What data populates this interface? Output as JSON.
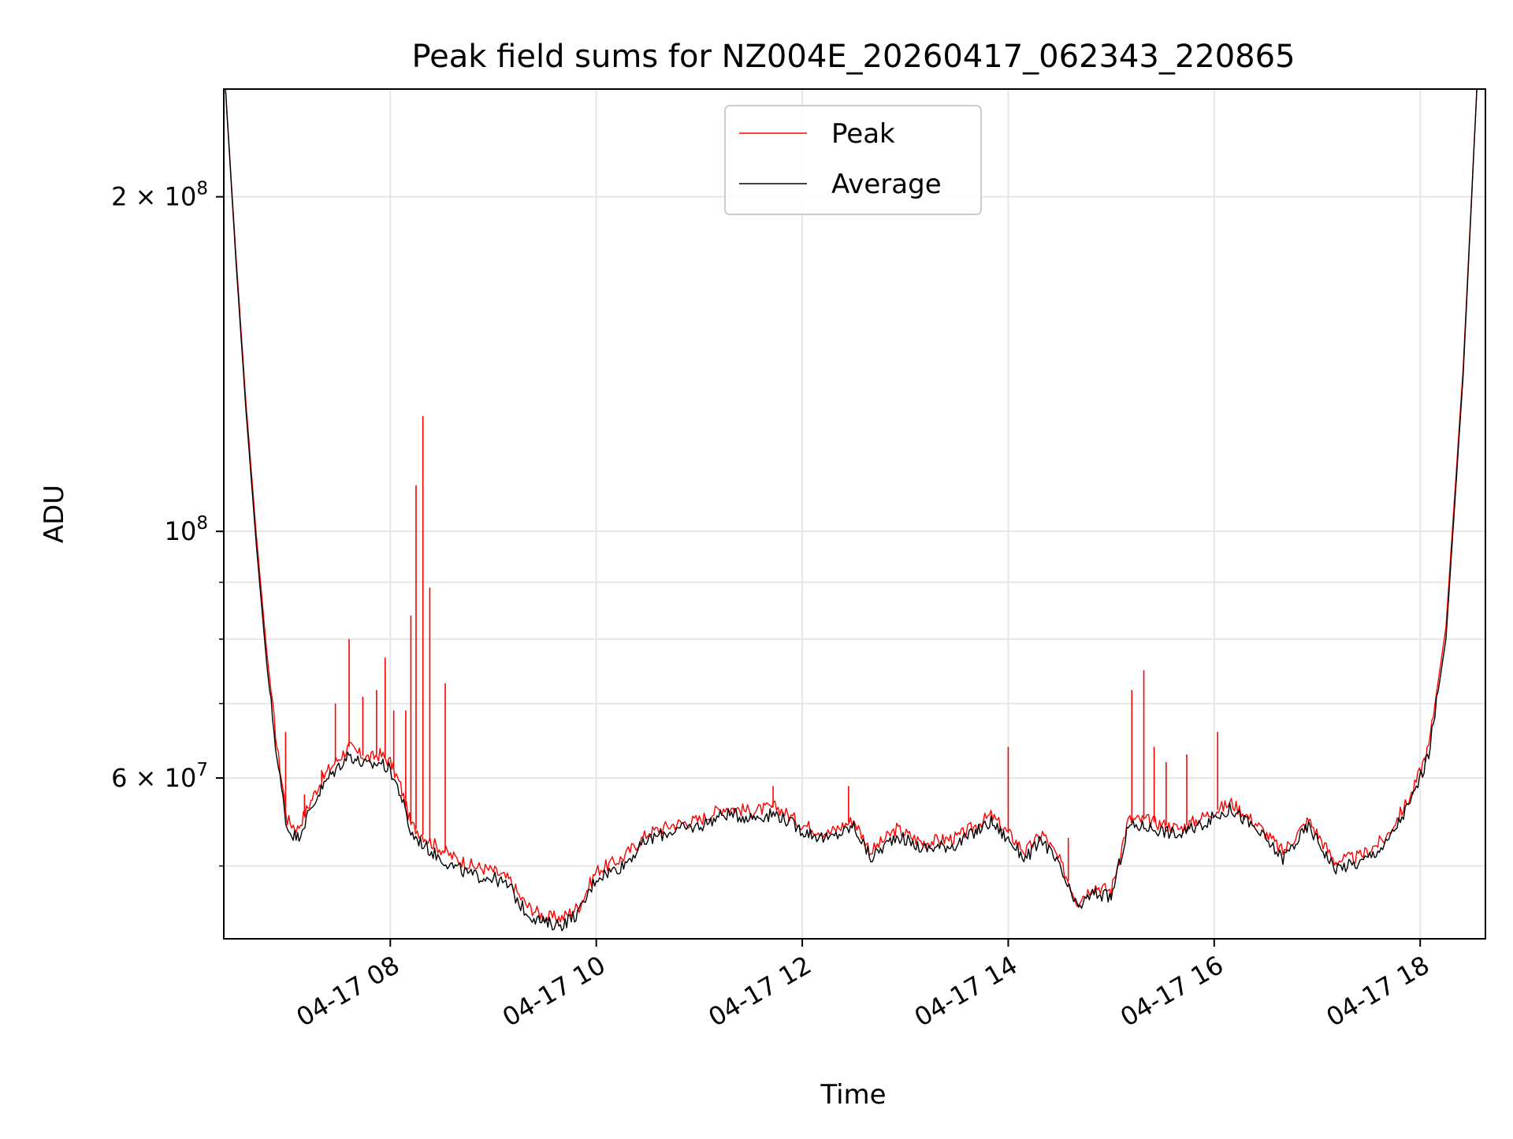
{
  "chart_data": {
    "type": "line",
    "title": "Peak field sums for NZ004E_20260417_062343_220865",
    "xlabel": "Time",
    "ylabel": "ADU",
    "x_type": "datetime",
    "x_range": [
      "2026-04-17T06:23",
      "2026-04-17T18:38"
    ],
    "xticks": [
      {
        "x": "2026-04-17T08:00",
        "label": "04-17 08"
      },
      {
        "x": "2026-04-17T10:00",
        "label": "04-17 10"
      },
      {
        "x": "2026-04-17T12:00",
        "label": "04-17 12"
      },
      {
        "x": "2026-04-17T14:00",
        "label": "04-17 14"
      },
      {
        "x": "2026-04-17T16:00",
        "label": "04-17 16"
      },
      {
        "x": "2026-04-17T18:00",
        "label": "04-17 18"
      }
    ],
    "yscale": "log",
    "ylim": [
      43000000,
      250000000
    ],
    "yticks_major": [
      {
        "value": 60000000,
        "base": "6",
        "exp": "7"
      },
      {
        "value": 100000000,
        "base": "",
        "exp": "8"
      },
      {
        "value": 200000000,
        "base": "2",
        "exp": "8"
      }
    ],
    "yticks_minor": [
      50000000,
      70000000,
      80000000,
      90000000
    ],
    "grid": true,
    "legend_position": "top-center",
    "series": [
      {
        "name": "Peak",
        "color": "#ff0000",
        "points": [
          [
            "2026-04-17T06:24",
            250000000
          ],
          [
            "2026-04-17T06:30",
            178000000
          ],
          [
            "2026-04-17T06:36",
            130000000
          ],
          [
            "2026-04-17T06:42",
            99000000
          ],
          [
            "2026-04-17T06:48",
            78000000
          ],
          [
            "2026-04-17T06:54",
            64000000
          ],
          [
            "2026-04-17T07:00",
            55000000
          ],
          [
            "2026-04-17T07:06",
            54000000
          ],
          [
            "2026-04-17T07:12",
            56500000
          ],
          [
            "2026-04-17T07:18",
            59000000
          ],
          [
            "2026-04-17T07:24",
            61000000
          ],
          [
            "2026-04-17T07:30",
            62500000
          ],
          [
            "2026-04-17T07:36",
            64000000
          ],
          [
            "2026-04-17T07:42",
            63000000
          ],
          [
            "2026-04-17T07:48",
            62500000
          ],
          [
            "2026-04-17T07:54",
            63000000
          ],
          [
            "2026-04-17T08:00",
            62000000
          ],
          [
            "2026-04-17T08:06",
            59000000
          ],
          [
            "2026-04-17T08:12",
            54500000
          ],
          [
            "2026-04-17T08:24",
            52500000
          ],
          [
            "2026-04-17T08:36",
            51000000
          ],
          [
            "2026-04-17T08:48",
            50000000
          ],
          [
            "2026-04-17T09:00",
            49500000
          ],
          [
            "2026-04-17T09:10",
            48500000
          ],
          [
            "2026-04-17T09:15",
            47000000
          ],
          [
            "2026-04-17T09:20",
            46000000
          ],
          [
            "2026-04-17T09:30",
            45000000
          ],
          [
            "2026-04-17T09:40",
            44900000
          ],
          [
            "2026-04-17T09:50",
            46000000
          ],
          [
            "2026-04-17T10:00",
            49500000
          ],
          [
            "2026-04-17T10:15",
            50800000
          ],
          [
            "2026-04-17T10:30",
            53500000
          ],
          [
            "2026-04-17T10:45",
            54500000
          ],
          [
            "2026-04-17T11:00",
            55000000
          ],
          [
            "2026-04-17T11:15",
            56500000
          ],
          [
            "2026-04-17T11:30",
            56000000
          ],
          [
            "2026-04-17T11:45",
            56500000
          ],
          [
            "2026-04-17T12:00",
            54500000
          ],
          [
            "2026-04-17T12:15",
            53500000
          ],
          [
            "2026-04-17T12:30",
            55000000
          ],
          [
            "2026-04-17T12:40",
            51500000
          ],
          [
            "2026-04-17T12:55",
            54000000
          ],
          [
            "2026-04-17T13:10",
            52500000
          ],
          [
            "2026-04-17T13:30",
            53000000
          ],
          [
            "2026-04-17T13:50",
            55500000
          ],
          [
            "2026-04-17T14:00",
            53500000
          ],
          [
            "2026-04-17T14:10",
            51500000
          ],
          [
            "2026-04-17T14:20",
            53500000
          ],
          [
            "2026-04-17T14:30",
            50500000
          ],
          [
            "2026-04-17T14:40",
            46500000
          ],
          [
            "2026-04-17T14:50",
            48000000
          ],
          [
            "2026-04-17T15:00",
            47500000
          ],
          [
            "2026-04-17T15:10",
            55000000
          ],
          [
            "2026-04-17T15:20",
            55000000
          ],
          [
            "2026-04-17T15:40",
            54000000
          ],
          [
            "2026-04-17T15:55",
            55500000
          ],
          [
            "2026-04-17T16:10",
            57000000
          ],
          [
            "2026-04-17T16:25",
            54500000
          ],
          [
            "2026-04-17T16:40",
            51500000
          ],
          [
            "2026-04-17T16:55",
            55000000
          ],
          [
            "2026-04-17T17:10",
            50500000
          ],
          [
            "2026-04-17T17:25",
            51000000
          ],
          [
            "2026-04-17T17:40",
            53000000
          ],
          [
            "2026-04-17T17:55",
            58000000
          ],
          [
            "2026-04-17T18:05",
            64000000
          ],
          [
            "2026-04-17T18:15",
            82000000
          ],
          [
            "2026-04-17T18:25",
            140000000
          ],
          [
            "2026-04-17T18:33",
            250000000
          ]
        ],
        "spikes": [
          [
            "2026-04-17T06:59",
            66000000
          ],
          [
            "2026-04-17T07:10",
            58000000
          ],
          [
            "2026-04-17T07:20",
            61000000
          ],
          [
            "2026-04-17T07:28",
            70000000
          ],
          [
            "2026-04-17T07:36",
            80000000
          ],
          [
            "2026-04-17T07:44",
            71000000
          ],
          [
            "2026-04-17T07:52",
            72000000
          ],
          [
            "2026-04-17T07:57",
            77000000
          ],
          [
            "2026-04-17T08:02",
            69000000
          ],
          [
            "2026-04-17T08:09",
            69000000
          ],
          [
            "2026-04-17T08:12",
            84000000
          ],
          [
            "2026-04-17T08:15",
            110000000
          ],
          [
            "2026-04-17T08:19",
            127000000
          ],
          [
            "2026-04-17T08:23",
            89000000
          ],
          [
            "2026-04-17T08:32",
            73000000
          ],
          [
            "2026-04-17T11:43",
            59000000
          ],
          [
            "2026-04-17T12:27",
            59000000
          ],
          [
            "2026-04-17T14:00",
            64000000
          ],
          [
            "2026-04-17T14:35",
            53000000
          ],
          [
            "2026-04-17T15:12",
            72000000
          ],
          [
            "2026-04-17T15:19",
            75000000
          ],
          [
            "2026-04-17T15:25",
            64000000
          ],
          [
            "2026-04-17T15:32",
            62000000
          ],
          [
            "2026-04-17T15:44",
            63000000
          ],
          [
            "2026-04-17T16:02",
            66000000
          ]
        ]
      },
      {
        "name": "Average",
        "color": "#000000",
        "points": [
          [
            "2026-04-17T06:24",
            250000000
          ],
          [
            "2026-04-17T06:30",
            176000000
          ],
          [
            "2026-04-17T06:36",
            128000000
          ],
          [
            "2026-04-17T06:42",
            97000000
          ],
          [
            "2026-04-17T06:48",
            76000000
          ],
          [
            "2026-04-17T06:54",
            62500000
          ],
          [
            "2026-04-17T07:00",
            54000000
          ],
          [
            "2026-04-17T07:06",
            53000000
          ],
          [
            "2026-04-17T07:12",
            55500000
          ],
          [
            "2026-04-17T07:18",
            58000000
          ],
          [
            "2026-04-17T07:24",
            60000000
          ],
          [
            "2026-04-17T07:30",
            61500000
          ],
          [
            "2026-04-17T07:36",
            63000000
          ],
          [
            "2026-04-17T07:42",
            62000000
          ],
          [
            "2026-04-17T07:48",
            61500000
          ],
          [
            "2026-04-17T07:54",
            62000000
          ],
          [
            "2026-04-17T08:00",
            61000000
          ],
          [
            "2026-04-17T08:06",
            58000000
          ],
          [
            "2026-04-17T08:12",
            53500000
          ],
          [
            "2026-04-17T08:24",
            51500000
          ],
          [
            "2026-04-17T08:36",
            50000000
          ],
          [
            "2026-04-17T08:48",
            49000000
          ],
          [
            "2026-04-17T09:00",
            48800000
          ],
          [
            "2026-04-17T09:10",
            47800000
          ],
          [
            "2026-04-17T09:15",
            46300000
          ],
          [
            "2026-04-17T09:20",
            45300000
          ],
          [
            "2026-04-17T09:30",
            44400000
          ],
          [
            "2026-04-17T09:40",
            44300000
          ],
          [
            "2026-04-17T09:50",
            45400000
          ],
          [
            "2026-04-17T10:00",
            48800000
          ],
          [
            "2026-04-17T10:15",
            50000000
          ],
          [
            "2026-04-17T10:30",
            52800000
          ],
          [
            "2026-04-17T10:45",
            53800000
          ],
          [
            "2026-04-17T11:00",
            54300000
          ],
          [
            "2026-04-17T11:15",
            55700000
          ],
          [
            "2026-04-17T11:30",
            55300000
          ],
          [
            "2026-04-17T11:45",
            55700000
          ],
          [
            "2026-04-17T12:00",
            53800000
          ],
          [
            "2026-04-17T12:15",
            52800000
          ],
          [
            "2026-04-17T12:30",
            54300000
          ],
          [
            "2026-04-17T12:40",
            50800000
          ],
          [
            "2026-04-17T12:55",
            53300000
          ],
          [
            "2026-04-17T13:10",
            51800000
          ],
          [
            "2026-04-17T13:30",
            52300000
          ],
          [
            "2026-04-17T13:50",
            54800000
          ],
          [
            "2026-04-17T14:00",
            52800000
          ],
          [
            "2026-04-17T14:10",
            50800000
          ],
          [
            "2026-04-17T14:20",
            52800000
          ],
          [
            "2026-04-17T14:30",
            49800000
          ],
          [
            "2026-04-17T14:40",
            45800000
          ],
          [
            "2026-04-17T14:50",
            47300000
          ],
          [
            "2026-04-17T15:00",
            46800000
          ],
          [
            "2026-04-17T15:10",
            54300000
          ],
          [
            "2026-04-17T15:20",
            54300000
          ],
          [
            "2026-04-17T15:40",
            53300000
          ],
          [
            "2026-04-17T15:55",
            54800000
          ],
          [
            "2026-04-17T16:10",
            56300000
          ],
          [
            "2026-04-17T16:25",
            53800000
          ],
          [
            "2026-04-17T16:40",
            50800000
          ],
          [
            "2026-04-17T16:55",
            54300000
          ],
          [
            "2026-04-17T17:10",
            49800000
          ],
          [
            "2026-04-17T17:25",
            50300000
          ],
          [
            "2026-04-17T17:40",
            52300000
          ],
          [
            "2026-04-17T17:55",
            57300000
          ],
          [
            "2026-04-17T18:05",
            63000000
          ],
          [
            "2026-04-17T18:15",
            80000000
          ],
          [
            "2026-04-17T18:25",
            138000000
          ],
          [
            "2026-04-17T18:33",
            250000000
          ]
        ]
      }
    ]
  }
}
